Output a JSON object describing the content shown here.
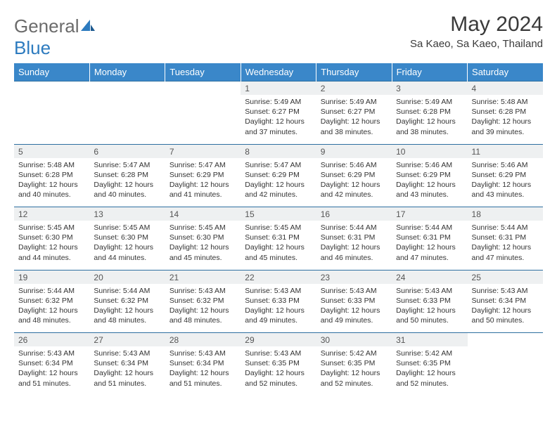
{
  "brand": {
    "part1": "General",
    "part2": "Blue"
  },
  "title": "May 2024",
  "location": "Sa Kaeo, Sa Kaeo, Thailand",
  "colors": {
    "header_bg": "#3a87c9",
    "header_text": "#ffffff",
    "grid_border": "#2d6fa0",
    "daynum_bg": "#eef0f1",
    "text": "#333333",
    "logo_gray": "#6b6b6b",
    "logo_blue": "#2d7bbf"
  },
  "day_headers": [
    "Sunday",
    "Monday",
    "Tuesday",
    "Wednesday",
    "Thursday",
    "Friday",
    "Saturday"
  ],
  "weeks": [
    {
      "nums": [
        "",
        "",
        "",
        "1",
        "2",
        "3",
        "4"
      ],
      "cells": [
        null,
        null,
        null,
        {
          "sunrise": "5:49 AM",
          "sunset": "6:27 PM",
          "daylight": "12 hours and 37 minutes."
        },
        {
          "sunrise": "5:49 AM",
          "sunset": "6:27 PM",
          "daylight": "12 hours and 38 minutes."
        },
        {
          "sunrise": "5:49 AM",
          "sunset": "6:28 PM",
          "daylight": "12 hours and 38 minutes."
        },
        {
          "sunrise": "5:48 AM",
          "sunset": "6:28 PM",
          "daylight": "12 hours and 39 minutes."
        }
      ]
    },
    {
      "nums": [
        "5",
        "6",
        "7",
        "8",
        "9",
        "10",
        "11"
      ],
      "cells": [
        {
          "sunrise": "5:48 AM",
          "sunset": "6:28 PM",
          "daylight": "12 hours and 40 minutes."
        },
        {
          "sunrise": "5:47 AM",
          "sunset": "6:28 PM",
          "daylight": "12 hours and 40 minutes."
        },
        {
          "sunrise": "5:47 AM",
          "sunset": "6:29 PM",
          "daylight": "12 hours and 41 minutes."
        },
        {
          "sunrise": "5:47 AM",
          "sunset": "6:29 PM",
          "daylight": "12 hours and 42 minutes."
        },
        {
          "sunrise": "5:46 AM",
          "sunset": "6:29 PM",
          "daylight": "12 hours and 42 minutes."
        },
        {
          "sunrise": "5:46 AM",
          "sunset": "6:29 PM",
          "daylight": "12 hours and 43 minutes."
        },
        {
          "sunrise": "5:46 AM",
          "sunset": "6:29 PM",
          "daylight": "12 hours and 43 minutes."
        }
      ]
    },
    {
      "nums": [
        "12",
        "13",
        "14",
        "15",
        "16",
        "17",
        "18"
      ],
      "cells": [
        {
          "sunrise": "5:45 AM",
          "sunset": "6:30 PM",
          "daylight": "12 hours and 44 minutes."
        },
        {
          "sunrise": "5:45 AM",
          "sunset": "6:30 PM",
          "daylight": "12 hours and 44 minutes."
        },
        {
          "sunrise": "5:45 AM",
          "sunset": "6:30 PM",
          "daylight": "12 hours and 45 minutes."
        },
        {
          "sunrise": "5:45 AM",
          "sunset": "6:31 PM",
          "daylight": "12 hours and 45 minutes."
        },
        {
          "sunrise": "5:44 AM",
          "sunset": "6:31 PM",
          "daylight": "12 hours and 46 minutes."
        },
        {
          "sunrise": "5:44 AM",
          "sunset": "6:31 PM",
          "daylight": "12 hours and 47 minutes."
        },
        {
          "sunrise": "5:44 AM",
          "sunset": "6:31 PM",
          "daylight": "12 hours and 47 minutes."
        }
      ]
    },
    {
      "nums": [
        "19",
        "20",
        "21",
        "22",
        "23",
        "24",
        "25"
      ],
      "cells": [
        {
          "sunrise": "5:44 AM",
          "sunset": "6:32 PM",
          "daylight": "12 hours and 48 minutes."
        },
        {
          "sunrise": "5:44 AM",
          "sunset": "6:32 PM",
          "daylight": "12 hours and 48 minutes."
        },
        {
          "sunrise": "5:43 AM",
          "sunset": "6:32 PM",
          "daylight": "12 hours and 48 minutes."
        },
        {
          "sunrise": "5:43 AM",
          "sunset": "6:33 PM",
          "daylight": "12 hours and 49 minutes."
        },
        {
          "sunrise": "5:43 AM",
          "sunset": "6:33 PM",
          "daylight": "12 hours and 49 minutes."
        },
        {
          "sunrise": "5:43 AM",
          "sunset": "6:33 PM",
          "daylight": "12 hours and 50 minutes."
        },
        {
          "sunrise": "5:43 AM",
          "sunset": "6:34 PM",
          "daylight": "12 hours and 50 minutes."
        }
      ]
    },
    {
      "nums": [
        "26",
        "27",
        "28",
        "29",
        "30",
        "31",
        ""
      ],
      "cells": [
        {
          "sunrise": "5:43 AM",
          "sunset": "6:34 PM",
          "daylight": "12 hours and 51 minutes."
        },
        {
          "sunrise": "5:43 AM",
          "sunset": "6:34 PM",
          "daylight": "12 hours and 51 minutes."
        },
        {
          "sunrise": "5:43 AM",
          "sunset": "6:34 PM",
          "daylight": "12 hours and 51 minutes."
        },
        {
          "sunrise": "5:43 AM",
          "sunset": "6:35 PM",
          "daylight": "12 hours and 52 minutes."
        },
        {
          "sunrise": "5:42 AM",
          "sunset": "6:35 PM",
          "daylight": "12 hours and 52 minutes."
        },
        {
          "sunrise": "5:42 AM",
          "sunset": "6:35 PM",
          "daylight": "12 hours and 52 minutes."
        },
        null
      ]
    }
  ],
  "labels": {
    "sunrise": "Sunrise: ",
    "sunset": "Sunset: ",
    "daylight": "Daylight: "
  }
}
